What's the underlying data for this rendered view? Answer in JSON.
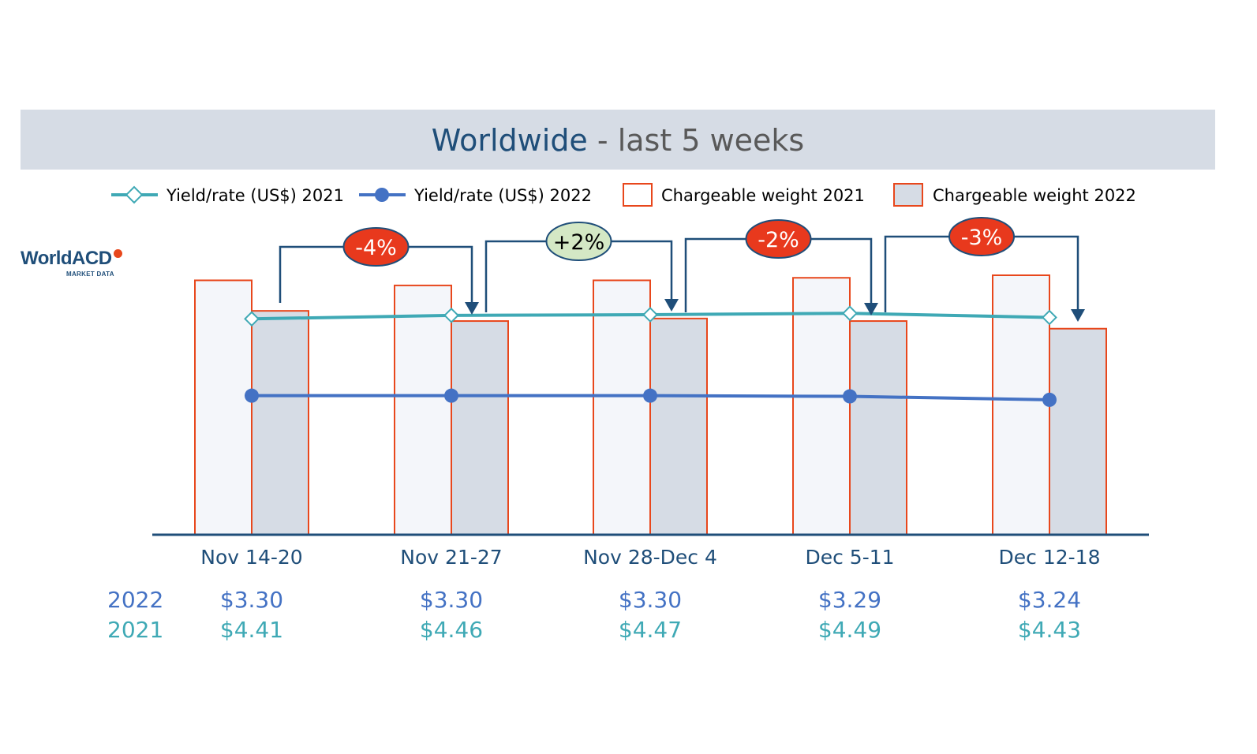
{
  "title": {
    "main": "Worldwide",
    "sub": " - last 5 weeks"
  },
  "logo": {
    "name": "WorldACD",
    "tagline": "MARKET DATA"
  },
  "colors": {
    "band": "#d6dce5",
    "bar_outline": "#e8471c",
    "bar_2021_fill": "#f4f6fa",
    "bar_2022_fill": "#d6dce5",
    "line_2021": "#3fa9b5",
    "line_2022": "#4472c4",
    "axis": "#1f4e79",
    "badge_negative": "#e8391d",
    "badge_positive": "#d4e8c5"
  },
  "chart_data": {
    "type": "bar",
    "categories": [
      "Nov 14-20",
      "Nov 21-27",
      "Nov 28-Dec 4",
      "Dec 5-11",
      "Dec 12-18"
    ],
    "series": [
      {
        "name": "Chargeable weight 2021",
        "kind": "bar",
        "values": [
          100,
          98,
          100,
          101,
          102
        ]
      },
      {
        "name": "Chargeable weight 2022",
        "kind": "bar",
        "values": [
          88,
          84,
          85,
          84,
          81
        ]
      },
      {
        "name": "Yield/rate (US$) 2021",
        "kind": "line",
        "values": [
          4.41,
          4.46,
          4.47,
          4.49,
          4.43
        ]
      },
      {
        "name": "Yield/rate (US$) 2022",
        "kind": "line",
        "values": [
          3.3,
          3.3,
          3.3,
          3.29,
          3.24
        ]
      }
    ],
    "weight_ylim": [
      0,
      102
    ],
    "yield_ylim": [
      1.29,
      5.04
    ],
    "changes": [
      {
        "label": "-4%",
        "positive": false
      },
      {
        "label": "+2%",
        "positive": true
      },
      {
        "label": "-2%",
        "positive": false
      },
      {
        "label": "-3%",
        "positive": false
      }
    ],
    "table": [
      {
        "year": "2022",
        "values": [
          "$3.30",
          "$3.30",
          "$3.30",
          "$3.29",
          "$3.24"
        ]
      },
      {
        "year": "2021",
        "values": [
          "$4.41",
          "$4.46",
          "$4.47",
          "$4.49",
          "$4.43"
        ]
      }
    ]
  }
}
